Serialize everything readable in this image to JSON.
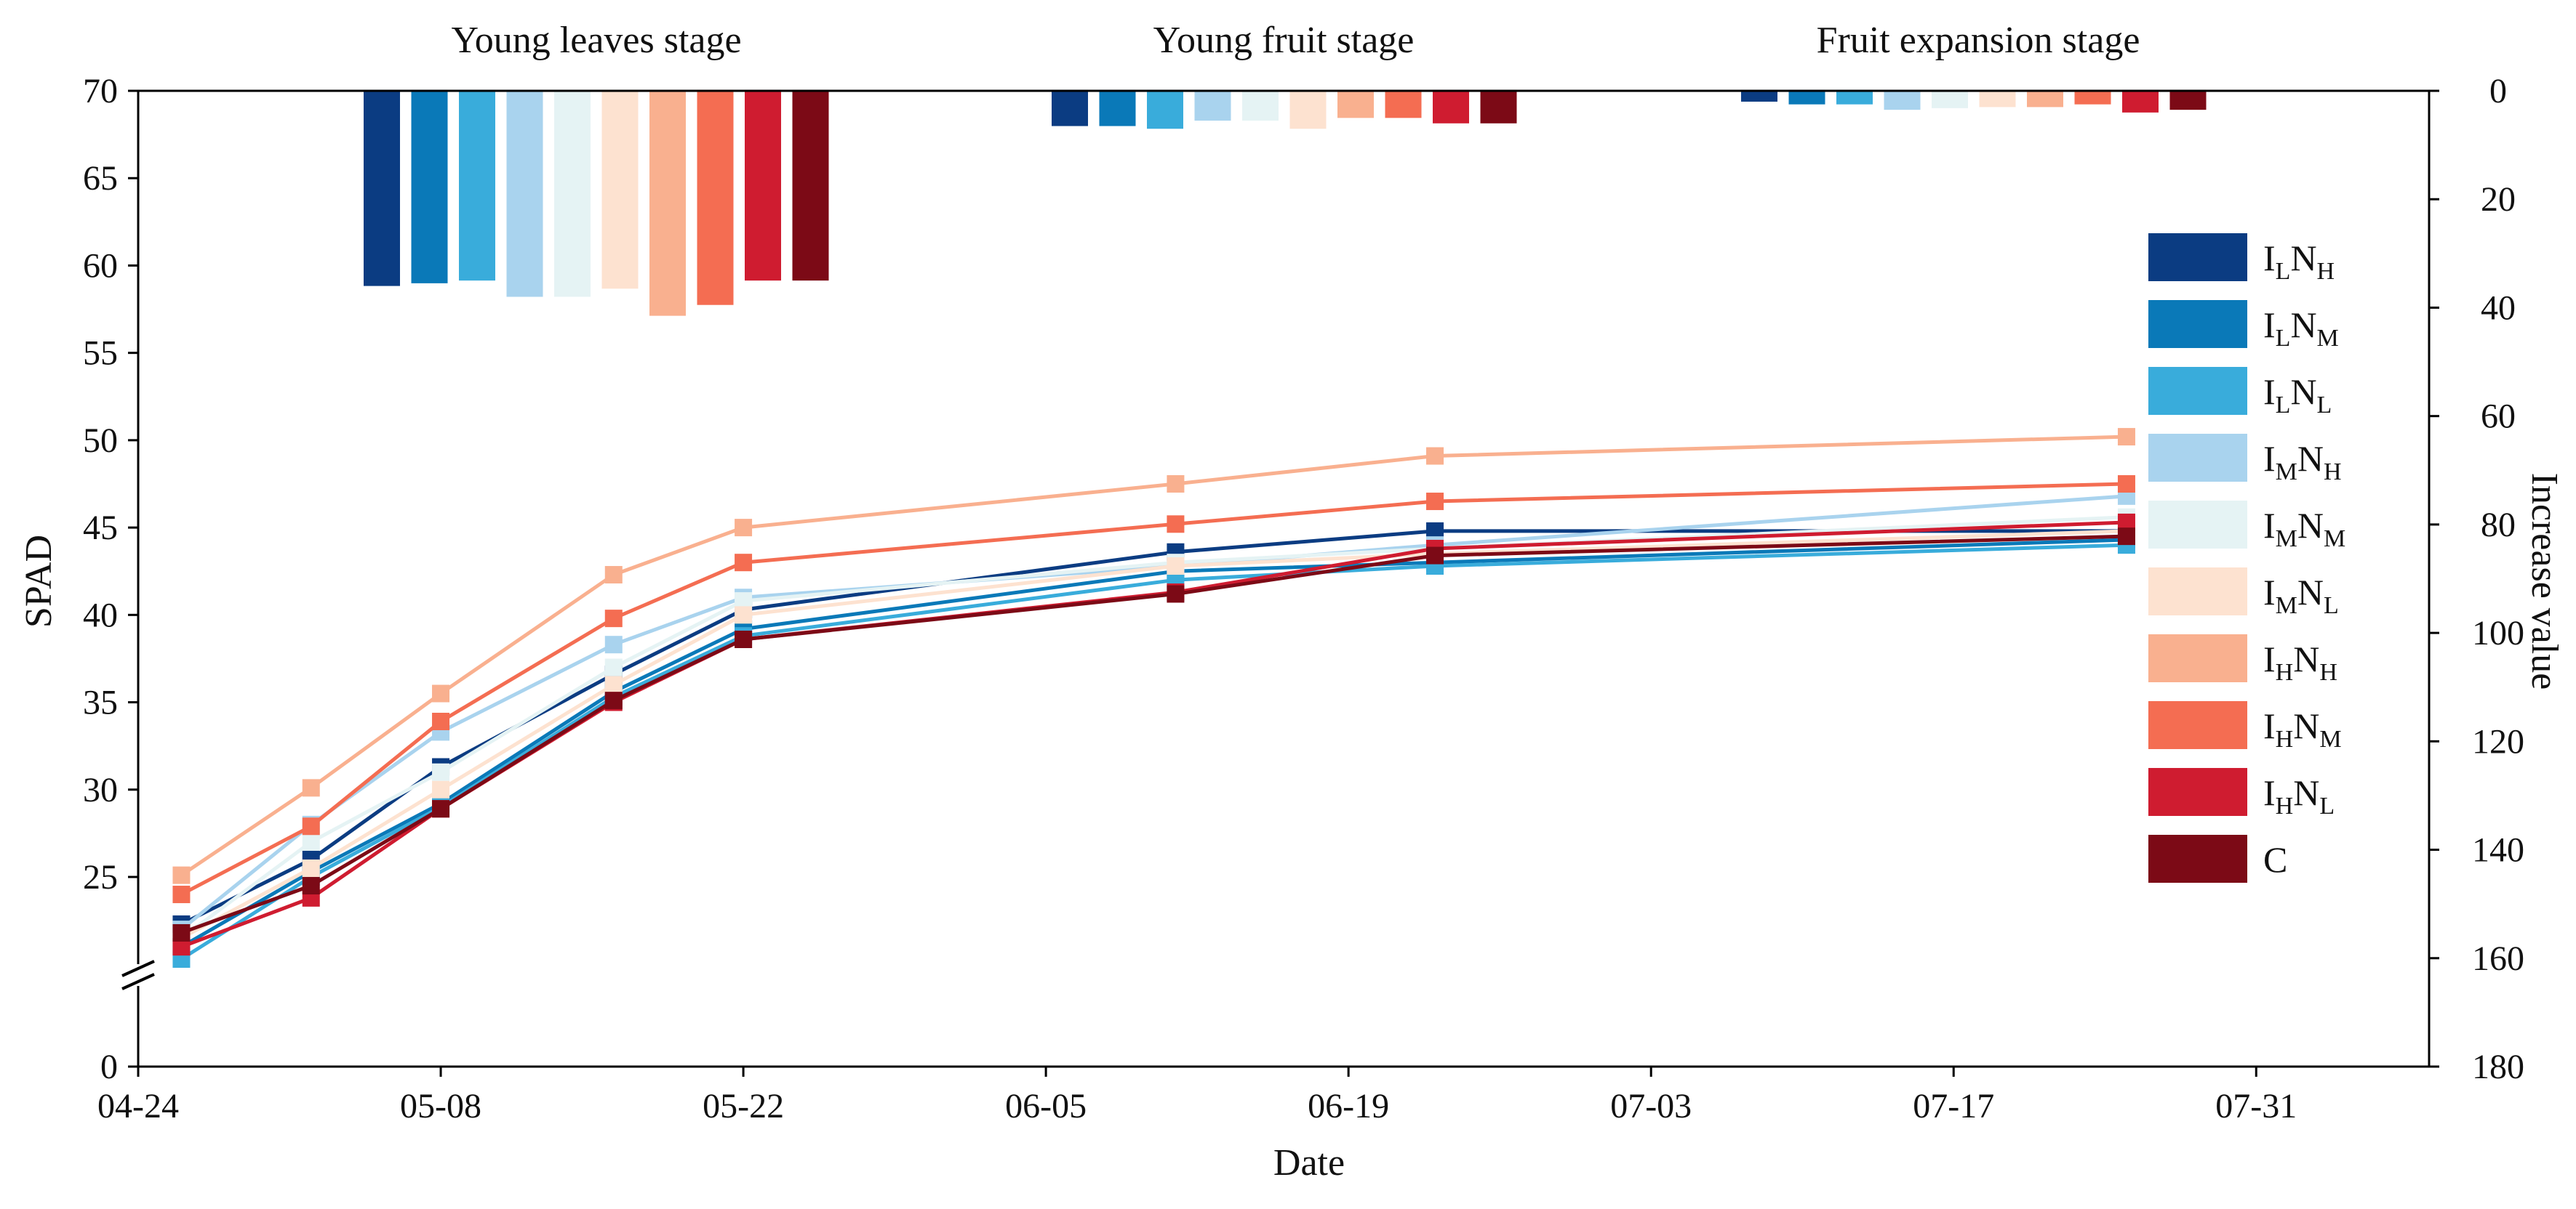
{
  "chart_data": {
    "type": "line",
    "xlabel": "Date",
    "ylabel": "SPAD",
    "y2label": "Increase value",
    "x_ticks": [
      "04-24",
      "05-08",
      "05-22",
      "06-05",
      "06-19",
      "07-03",
      "07-17",
      "07-31"
    ],
    "x_tick_days": [
      0,
      14,
      28,
      42,
      56,
      70,
      84,
      98
    ],
    "xlim_days": [
      0,
      106
    ],
    "y_ticks": [
      0,
      25,
      30,
      35,
      40,
      45,
      50,
      55,
      60,
      65,
      70
    ],
    "ylim": [
      0,
      70
    ],
    "y_break": [
      0,
      20
    ],
    "y2_ticks": [
      0,
      20,
      40,
      60,
      80,
      100,
      120,
      140,
      160,
      180
    ],
    "y2lim": [
      0,
      180
    ],
    "stages": [
      {
        "label": "Young leaves stage",
        "start_day": 10.5,
        "end_day": 31.5
      },
      {
        "label": "Young fruit stage",
        "start_day": 42.5,
        "end_day": 63.5
      },
      {
        "label": "Fruit expansion stage",
        "start_day": 74.5,
        "end_day": 95.5
      }
    ],
    "dates_days": [
      2,
      8,
      14,
      22,
      28,
      48,
      60,
      92
    ],
    "series": [
      {
        "name": "ILNH",
        "base": "I",
        "sub1": "L",
        "mid": "N",
        "sub2": "H",
        "color": "#0b3c82",
        "values": [
          22.3,
          26.0,
          31.3,
          36.6,
          40.3,
          43.6,
          44.8,
          44.8
        ],
        "bars": [
          36,
          6.5,
          2
        ]
      },
      {
        "name": "ILNM",
        "base": "I",
        "sub1": "L",
        "mid": "N",
        "sub2": "M",
        "color": "#0a79b8",
        "values": [
          21.0,
          25.3,
          29.2,
          35.6,
          39.2,
          42.5,
          43.0,
          44.3
        ],
        "bars": [
          35.5,
          6.5,
          2.5
        ]
      },
      {
        "name": "ILNL",
        "base": "I",
        "sub1": "L",
        "mid": "N",
        "sub2": "L",
        "color": "#39acdb",
        "values": [
          20.3,
          25.0,
          29.0,
          35.3,
          38.8,
          42.0,
          42.8,
          44.0
        ],
        "bars": [
          35,
          7,
          2.5
        ]
      },
      {
        "name": "IMNH",
        "base": "I",
        "sub1": "M",
        "mid": "N",
        "sub2": "H",
        "color": "#a9d3ee",
        "values": [
          22.0,
          28.0,
          33.3,
          38.3,
          41.0,
          42.8,
          44.0,
          46.8
        ],
        "bars": [
          38,
          5.5,
          3.5
        ]
      },
      {
        "name": "IMNM",
        "base": "I",
        "sub1": "M",
        "mid": "N",
        "sub2": "M",
        "color": "#e5f3f4",
        "values": [
          21.5,
          27.0,
          31.0,
          37.0,
          40.8,
          43.0,
          43.8,
          45.6
        ],
        "bars": [
          38,
          5.5,
          3.2
        ]
      },
      {
        "name": "IMNL",
        "base": "I",
        "sub1": "M",
        "mid": "N",
        "sub2": "L",
        "color": "#fde2d0",
        "values": [
          21.5,
          25.5,
          30.0,
          36.0,
          40.0,
          42.8,
          43.5,
          44.8
        ],
        "bars": [
          36.5,
          7,
          3
        ]
      },
      {
        "name": "IHNH",
        "base": "I",
        "sub1": "H",
        "mid": "N",
        "sub2": "H",
        "color": "#f9b08f",
        "values": [
          25.1,
          30.1,
          35.5,
          42.3,
          45.0,
          47.5,
          49.1,
          50.2
        ],
        "bars": [
          41.5,
          5,
          3
        ]
      },
      {
        "name": "IHNM",
        "base": "I",
        "sub1": "H",
        "mid": "N",
        "sub2": "M",
        "color": "#f46d52",
        "values": [
          24.0,
          27.9,
          33.9,
          39.8,
          43.0,
          45.2,
          46.5,
          47.5
        ],
        "bars": [
          39.5,
          5,
          2.5
        ]
      },
      {
        "name": "IHNL",
        "base": "I",
        "sub1": "H",
        "mid": "N",
        "sub2": "L",
        "color": "#cf1c30",
        "values": [
          21.0,
          23.8,
          28.9,
          35.0,
          38.6,
          41.3,
          43.8,
          45.3
        ],
        "bars": [
          35,
          6,
          4
        ]
      },
      {
        "name": "C",
        "base": "C",
        "sub1": "",
        "mid": "",
        "sub2": "",
        "color": "#7c0a16",
        "values": [
          21.8,
          24.5,
          28.9,
          35.1,
          38.6,
          41.2,
          43.4,
          44.5
        ],
        "bars": [
          35,
          6,
          3.5
        ]
      }
    ]
  }
}
